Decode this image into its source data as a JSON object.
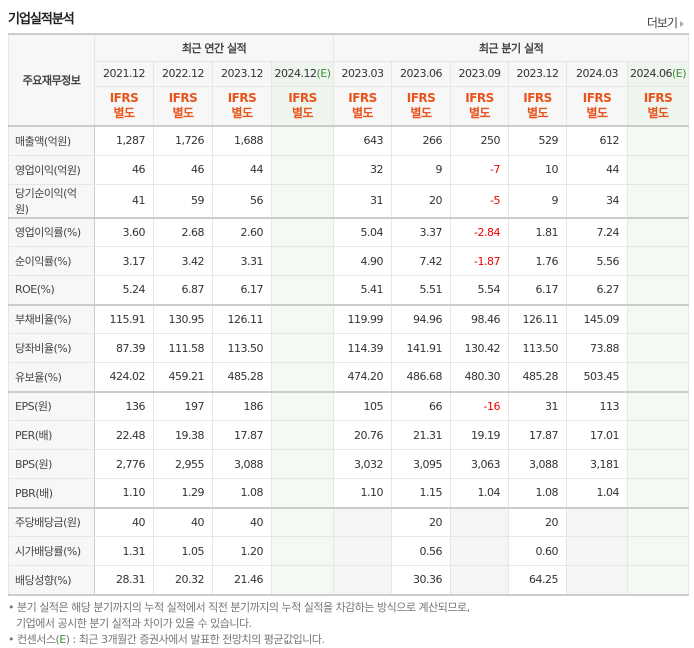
{
  "title": "기업실적분석",
  "more": "더보기",
  "header": {
    "label": "주요재무정보",
    "annual_group": "최근 연간 실적",
    "quarter_group": "최근 분기 실적",
    "annual_periods": [
      "2021.12",
      "2022.12",
      "2023.12",
      "2024.12"
    ],
    "quarter_periods": [
      "2023.03",
      "2023.06",
      "2023.09",
      "2023.12",
      "2024.03",
      "2024.06"
    ],
    "estimate_mark": "(E)",
    "ifrs": "IFRS",
    "basis": "별도"
  },
  "rows": [
    {
      "label": "매출액(억원)",
      "values": [
        "1,287",
        "1,726",
        "1,688",
        "",
        "643",
        "266",
        "250",
        "529",
        "612",
        ""
      ]
    },
    {
      "label": "영업이익(억원)",
      "values": [
        "46",
        "46",
        "44",
        "",
        "32",
        "9",
        "-7",
        "10",
        "44",
        ""
      ]
    },
    {
      "label": "당기순이익(억원)",
      "values": [
        "41",
        "59",
        "56",
        "",
        "31",
        "20",
        "-5",
        "9",
        "34",
        ""
      ]
    },
    {
      "label": "영업이익률(%)",
      "values": [
        "3.60",
        "2.68",
        "2.60",
        "",
        "5.04",
        "3.37",
        "-2.84",
        "1.81",
        "7.24",
        ""
      ]
    },
    {
      "label": "순이익률(%)",
      "values": [
        "3.17",
        "3.42",
        "3.31",
        "",
        "4.90",
        "7.42",
        "-1.87",
        "1.76",
        "5.56",
        ""
      ]
    },
    {
      "label": "ROE(%)",
      "values": [
        "5.24",
        "6.87",
        "6.17",
        "",
        "5.41",
        "5.51",
        "5.54",
        "6.17",
        "6.27",
        ""
      ]
    },
    {
      "label": "부채비율(%)",
      "values": [
        "115.91",
        "130.95",
        "126.11",
        "",
        "119.99",
        "94.96",
        "98.46",
        "126.11",
        "145.09",
        ""
      ]
    },
    {
      "label": "당좌비율(%)",
      "values": [
        "87.39",
        "111.58",
        "113.50",
        "",
        "114.39",
        "141.91",
        "130.42",
        "113.50",
        "73.88",
        ""
      ]
    },
    {
      "label": "유보율(%)",
      "values": [
        "424.02",
        "459.21",
        "485.28",
        "",
        "474.20",
        "486.68",
        "480.30",
        "485.28",
        "503.45",
        ""
      ]
    },
    {
      "label": "EPS(원)",
      "values": [
        "136",
        "197",
        "186",
        "",
        "105",
        "66",
        "-16",
        "31",
        "113",
        ""
      ]
    },
    {
      "label": "PER(배)",
      "values": [
        "22.48",
        "19.38",
        "17.87",
        "",
        "20.76",
        "21.31",
        "19.19",
        "17.87",
        "17.01",
        ""
      ]
    },
    {
      "label": "BPS(원)",
      "values": [
        "2,776",
        "2,955",
        "3,088",
        "",
        "3,032",
        "3,095",
        "3,063",
        "3,088",
        "3,181",
        ""
      ]
    },
    {
      "label": "PBR(배)",
      "values": [
        "1.10",
        "1.29",
        "1.08",
        "",
        "1.10",
        "1.15",
        "1.04",
        "1.08",
        "1.04",
        ""
      ]
    },
    {
      "label": "주당배당금(원)",
      "values": [
        "40",
        "40",
        "40",
        "",
        "",
        "20",
        "",
        "20",
        "",
        ""
      ]
    },
    {
      "label": "시가배당률(%)",
      "values": [
        "1.31",
        "1.05",
        "1.20",
        "",
        "",
        "0.56",
        "",
        "0.60",
        "",
        ""
      ]
    },
    {
      "label": "배당성향(%)",
      "values": [
        "28.31",
        "20.32",
        "21.46",
        "",
        "",
        "30.36",
        "",
        "64.25",
        "",
        ""
      ]
    }
  ],
  "notes": {
    "line1": "분기 실적은 해당 분기까지의 누적 실적에서 직전 분기까지의 누적 실적을 차감하는 방식으로 계산되므로,",
    "line2": "기업에서 공시한 분기 실적과 차이가 있을 수 있습니다.",
    "line3_prefix": "컨센서스(",
    "line3_e": "E",
    "line3_suffix": ") : 최근 3개월간 증권사에서 발표한 전망치의 평균값입니다."
  },
  "colors": {
    "ifrs": "#e8541c",
    "negative": "#e00000",
    "estimate_bg": "#eef5ee",
    "estimate_text": "#3a8f3a"
  }
}
